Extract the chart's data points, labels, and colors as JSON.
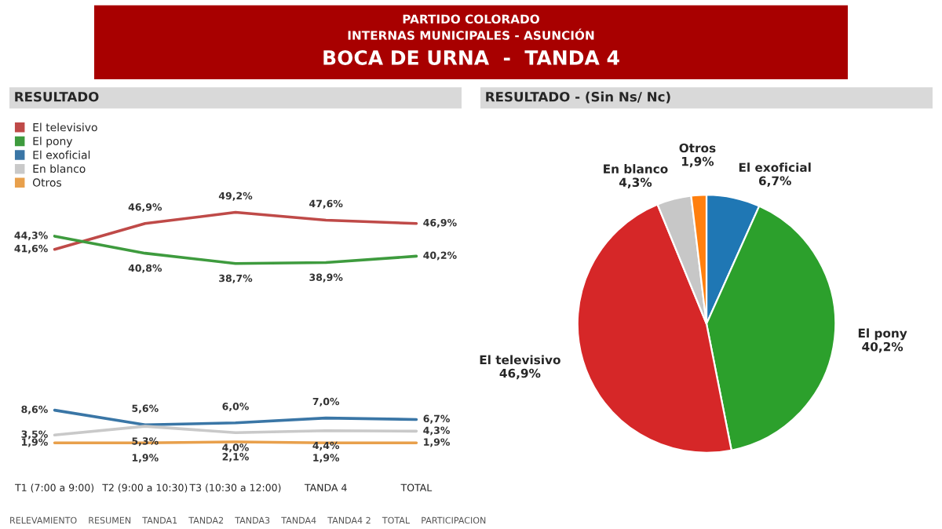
{
  "chart_data": [
    {
      "type": "line",
      "title": "RESULTADO",
      "annotations": [
        "PARTIDO COLORADO",
        "INTERNAS MUNICIPALES - ASUNCIÓN",
        "BOCA DE URNA  -  TANDA 4",
        "RELEVAMIENTO    RESUMEN    TANDA1    TANDA2    TANDA3    TANDA4    TANDA4 2    TOTAL    PARTICIPACION"
      ],
      "categories": [
        "T1 (7:00 a 9:00)",
        "T2 (9:00 a 10:30)",
        "T3 (10:30 a 12:00)",
        "TANDA 4",
        "TOTAL"
      ],
      "series": [
        {
          "name": "El televisivo",
          "color": "#bf4a48",
          "values": [
            41.6,
            46.9,
            49.2,
            47.6,
            46.9
          ],
          "value_labels": [
            "41,6%",
            "46,9%",
            "49,2%",
            "47,6%",
            "46,9%"
          ]
        },
        {
          "name": "El pony",
          "color": "#3e9b3e",
          "values": [
            44.3,
            40.8,
            38.7,
            38.9,
            40.2
          ],
          "value_labels": [
            "44,3%",
            "40,8%",
            "38,7%",
            "38,9%",
            "40,2%"
          ]
        },
        {
          "name": "El exoficial",
          "color": "#3a76a6",
          "values": [
            8.6,
            5.6,
            6.0,
            7.0,
            6.7
          ],
          "value_labels": [
            "8,6%",
            "5,6%",
            "6,0%",
            "7,0%",
            "6,7%"
          ]
        },
        {
          "name": "En blanco",
          "color": "#c9c9c9",
          "values": [
            3.5,
            5.3,
            4.0,
            4.4,
            4.3
          ],
          "value_labels": [
            "3,5%",
            "5,3%",
            "4,0%",
            "4,4%",
            "4,3%"
          ]
        },
        {
          "name": "Otros",
          "color": "#e8a04c",
          "values": [
            1.9,
            1.9,
            2.1,
            1.9,
            1.9
          ],
          "value_labels": [
            "1,9%",
            "1,9%",
            "2,1%",
            "1,9%",
            "1,9%"
          ]
        }
      ],
      "legend": "top left",
      "marker": "none",
      "line_style": "solid",
      "tick_labels": "x"
    },
    {
      "type": "pie",
      "title": "RESULTADO - (Sin Ns/ Nc)",
      "categories": [
        "El exoficial",
        "El pony",
        "El televisivo",
        "En blanco",
        "Otros"
      ],
      "values": [
        6.7,
        40.2,
        46.9,
        4.3,
        1.9
      ],
      "value_labels": [
        "6,7%",
        "40,2%",
        "46,9%",
        "4,3%",
        "1,9%"
      ],
      "colors": [
        "#1f77b4",
        "#2ca02c",
        "#d62728",
        "#c7c7c7",
        "#ff7f0e"
      ]
    }
  ]
}
